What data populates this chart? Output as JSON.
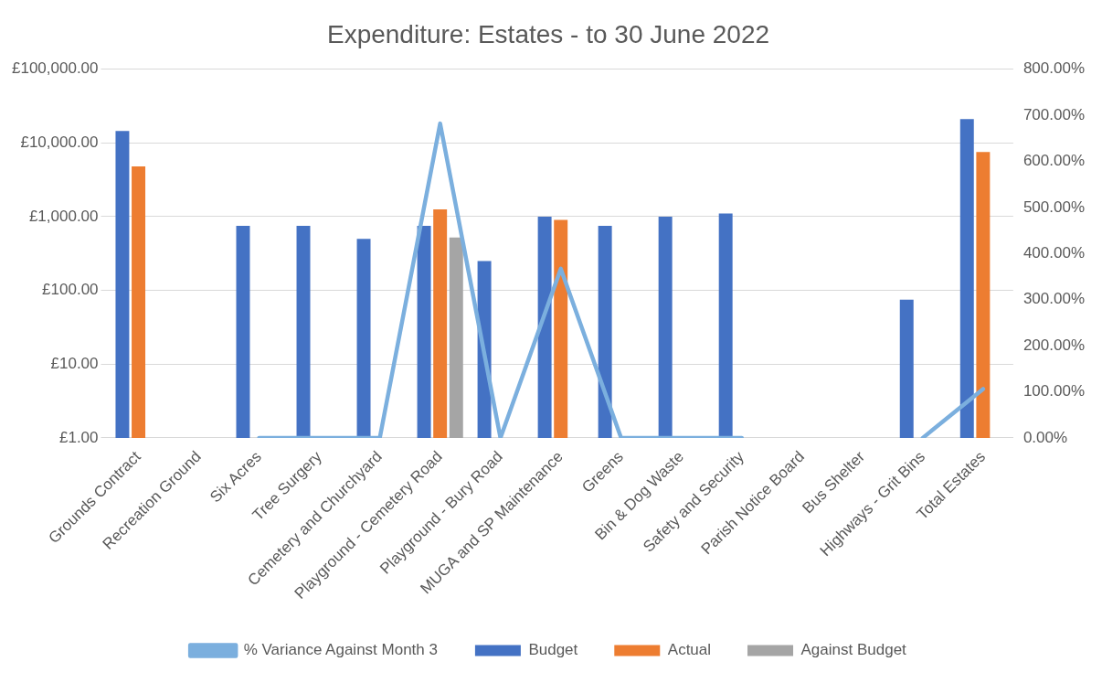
{
  "chart_data": {
    "type": "bar",
    "title": "Expenditure: Estates - to 30 June 2022",
    "categories": [
      "Grounds Contract",
      "Recreation Ground",
      "Six Acres",
      "Tree Surgery",
      "Cemetery and Churchyard",
      "Playground - Cemetery Road",
      "Playground - Bury Road",
      "MUGA and SP Maintenance",
      "Greens",
      "Bin & Dog Waste",
      "Safety and Security",
      "Parish Notice Board",
      "Bus Shelter",
      "Highways - Grit Bins",
      "Total Estates"
    ],
    "series": [
      {
        "name": "Budget",
        "color": "#4472c4",
        "values": [
          14500,
          null,
          750,
          750,
          500,
          750,
          250,
          1000,
          750,
          1000,
          1100,
          null,
          null,
          75,
          21000
        ]
      },
      {
        "name": "Actual",
        "color": "#ed7d31",
        "values": [
          4800,
          null,
          null,
          null,
          null,
          1250,
          null,
          900,
          null,
          null,
          null,
          null,
          null,
          null,
          7500
        ]
      },
      {
        "name": "Against Budget",
        "color": "#a5a5a5",
        "values": [
          null,
          null,
          null,
          null,
          null,
          520,
          null,
          null,
          null,
          null,
          null,
          null,
          null,
          null,
          null
        ]
      },
      {
        "name": "% Variance Against Month 3",
        "type": "line",
        "axis": "y2",
        "color": "#7bafde",
        "values": [
          null,
          null,
          0,
          0,
          0,
          682,
          0,
          367,
          0,
          0,
          0,
          null,
          null,
          0,
          106
        ]
      }
    ],
    "log": "y",
    "ylim": [
      1,
      100000
    ],
    "yticks": [
      {
        "value": 1,
        "label": "£1.00"
      },
      {
        "value": 10,
        "label": "£10.00"
      },
      {
        "value": 100,
        "label": "£100.00"
      },
      {
        "value": 1000,
        "label": "£1,000.00"
      },
      {
        "value": 10000,
        "label": "£10,000.00"
      },
      {
        "value": 100000,
        "label": "£100,000.00"
      }
    ],
    "y2lim": [
      0,
      800
    ],
    "y2ticks": [
      {
        "value": 0,
        "label": "0.00%"
      },
      {
        "value": 100,
        "label": "100.00%"
      },
      {
        "value": 200,
        "label": "200.00%"
      },
      {
        "value": 300,
        "label": "300.00%"
      },
      {
        "value": 400,
        "label": "400.00%"
      },
      {
        "value": 500,
        "label": "500.00%"
      },
      {
        "value": 600,
        "label": "600.00%"
      },
      {
        "value": 700,
        "label": "700.00%"
      },
      {
        "value": 800,
        "label": "800.00%"
      }
    ],
    "grid": "y",
    "legend": "bottom",
    "marker": "none"
  }
}
